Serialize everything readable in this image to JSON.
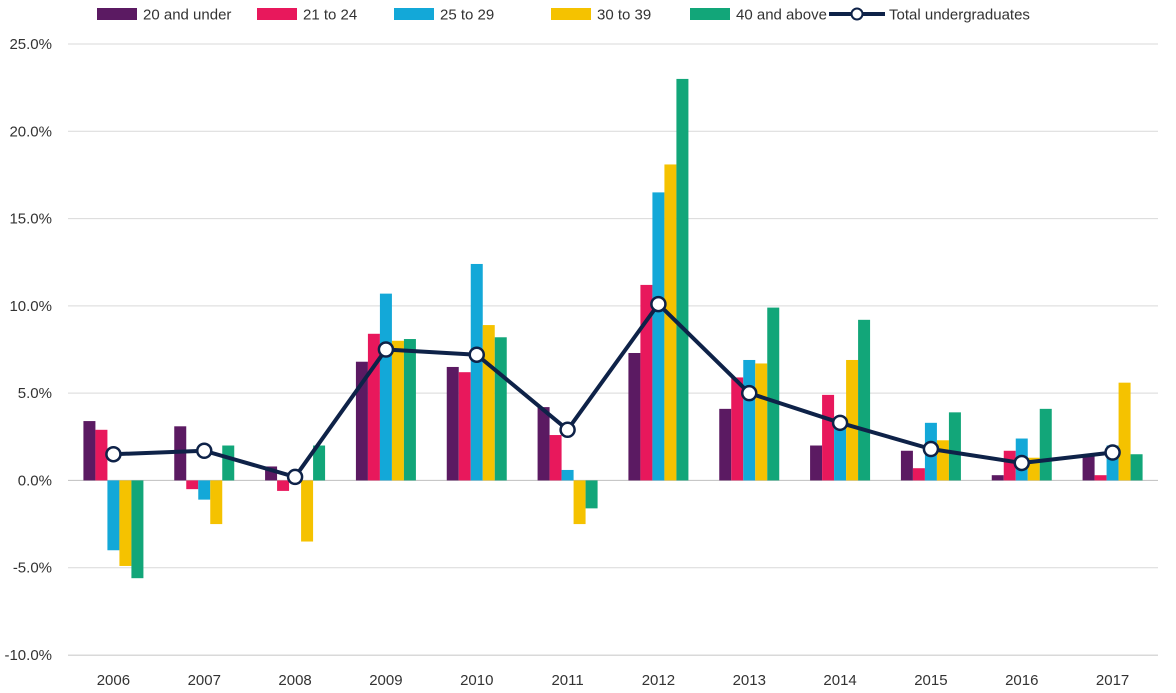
{
  "chart_data": {
    "type": "bar",
    "categories": [
      "2006",
      "2007",
      "2008",
      "2009",
      "2010",
      "2011",
      "2012",
      "2013",
      "2014",
      "2015",
      "2016",
      "2017"
    ],
    "ylim": [
      -10,
      25
    ],
    "yticks": [
      -10,
      -5,
      0,
      5,
      10,
      15,
      20,
      25
    ],
    "ytick_labels": [
      "-10.0%",
      "-5.0%",
      "0.0%",
      "5.0%",
      "10.0%",
      "15.0%",
      "20.0%",
      "25.0%"
    ],
    "grid": true,
    "legend_position": "top",
    "series": [
      {
        "name": "20 and under",
        "color": "#5B1A62",
        "values": [
          3.4,
          3.1,
          0.8,
          6.8,
          6.5,
          4.2,
          7.3,
          4.1,
          2.0,
          1.7,
          0.3,
          1.5
        ]
      },
      {
        "name": "21 to 24",
        "color": "#E8185C",
        "values": [
          2.9,
          -0.5,
          -0.6,
          8.4,
          6.2,
          2.6,
          11.2,
          5.9,
          4.9,
          0.7,
          1.7,
          0.3
        ]
      },
      {
        "name": "25 to 29",
        "color": "#13A8D8",
        "values": [
          -4.0,
          -1.1,
          0.0,
          10.7,
          12.4,
          0.6,
          16.5,
          6.9,
          3.0,
          3.3,
          2.4,
          2.0
        ]
      },
      {
        "name": "30 to 39",
        "color": "#F5C200",
        "values": [
          -4.9,
          -2.5,
          -3.5,
          8.0,
          8.9,
          -2.5,
          18.1,
          6.7,
          6.9,
          2.3,
          1.3,
          5.6
        ]
      },
      {
        "name": "40 and above",
        "color": "#12A679",
        "values": [
          -5.6,
          2.0,
          2.0,
          8.1,
          8.2,
          -1.6,
          23.0,
          9.9,
          9.2,
          3.9,
          4.1,
          1.5
        ]
      }
    ],
    "line_series": {
      "name": "Total undergraduates",
      "color": "#0E2248",
      "values": [
        1.5,
        1.7,
        0.2,
        7.5,
        7.2,
        2.9,
        10.1,
        5.0,
        3.3,
        1.8,
        1.0,
        1.6
      ]
    }
  }
}
